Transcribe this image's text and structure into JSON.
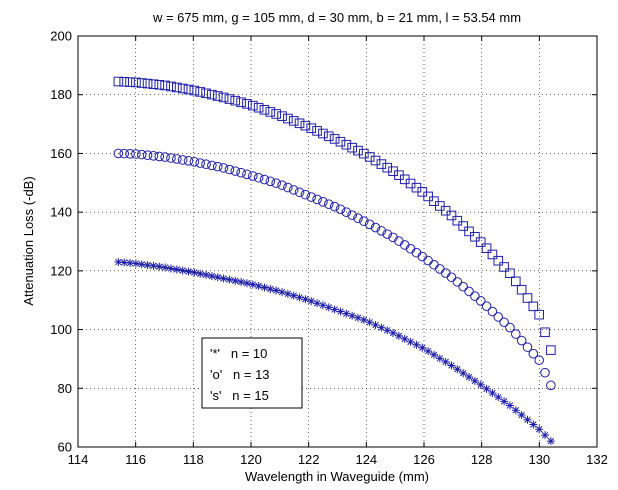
{
  "chart_data": {
    "type": "scatter",
    "title": "w = 675 mm, g = 105 mm, d = 30 mm, b = 21 mm, l = 53.54 mm",
    "xlabel": "Wavelength in Waveguide (mm)",
    "ylabel": "Attenuation Loss (-dB)",
    "xlim": [
      114,
      132
    ],
    "ylim": [
      60,
      200
    ],
    "xticks": [
      114,
      116,
      118,
      120,
      122,
      124,
      126,
      128,
      130,
      132
    ],
    "yticks": [
      60,
      80,
      100,
      120,
      140,
      160,
      180,
      200
    ],
    "grid": true,
    "legend_position": "bottom-left",
    "legend": {
      "lines": [
        "'*'   n = 10",
        "'o'   n = 13",
        "'s'   n = 15"
      ]
    },
    "series": [
      {
        "marker": "star",
        "color": "#1f1fa8",
        "x": [
          115.4,
          116.0,
          117.0,
          118.0,
          119.0,
          120.0,
          121.0,
          122.0,
          123.0,
          124.0,
          125.0,
          126.0,
          127.0,
          128.0,
          129.0,
          130.0,
          130.4
        ],
        "y": [
          123,
          122.5,
          121.2,
          119.5,
          117.5,
          115.5,
          113,
          110,
          106.5,
          103,
          98.5,
          93.5,
          87.5,
          81,
          74,
          66,
          62
        ]
      },
      {
        "marker": "circle",
        "color": "#1f1fa8",
        "x": [
          115.4,
          116.0,
          117.0,
          118.0,
          119.0,
          120.0,
          121.0,
          122.0,
          123.0,
          124.0,
          125.0,
          126.0,
          127.0,
          128.0,
          129.0,
          130.0,
          130.4
        ],
        "y": [
          160,
          159.8,
          158.8,
          157.2,
          155.2,
          152.5,
          149.5,
          145.5,
          141.5,
          136.5,
          131,
          124.5,
          117.5,
          109.5,
          100.5,
          89.5,
          81
        ]
      },
      {
        "marker": "square",
        "color": "#1f1fa8",
        "x": [
          115.4,
          116.0,
          117.0,
          118.0,
          119.0,
          120.0,
          121.0,
          122.0,
          123.0,
          124.0,
          125.0,
          126.0,
          127.0,
          128.0,
          129.0,
          130.0,
          130.4
        ],
        "y": [
          184.5,
          184.2,
          183.2,
          181.5,
          179.2,
          176.5,
          173,
          169,
          164.5,
          159.5,
          153.5,
          146.5,
          138.5,
          129.5,
          119,
          105,
          93
        ]
      }
    ]
  }
}
